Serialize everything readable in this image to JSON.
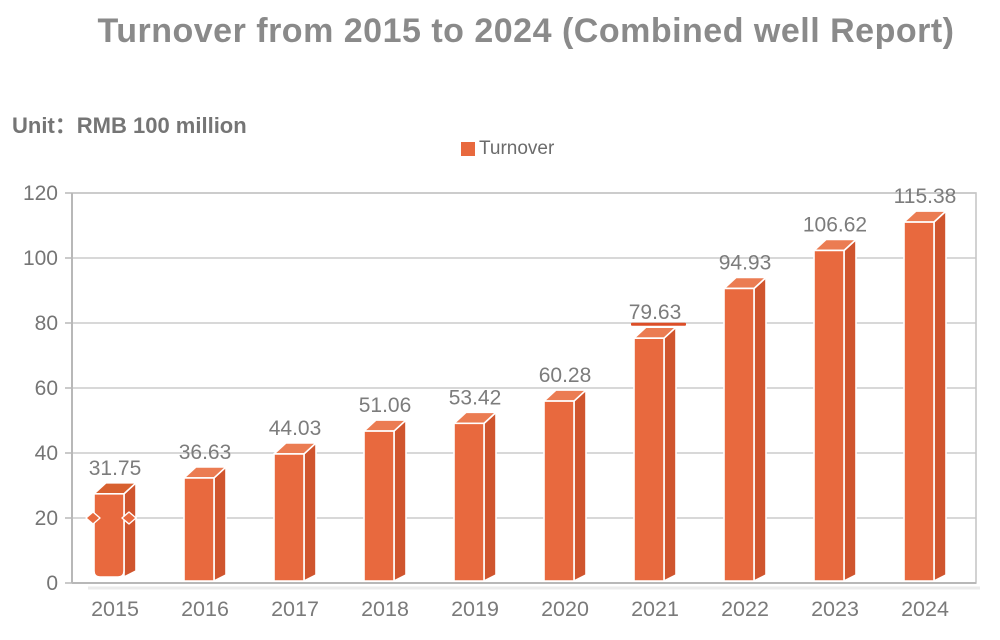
{
  "header": {
    "title": "Turnover from 2015 to 2024 (Combined well Report)",
    "unit_label": "Unit：RMB 100 million"
  },
  "legend": {
    "label": "Turnover",
    "swatch_color": "#e8693e"
  },
  "chart_data": {
    "type": "bar",
    "title": "Turnover from 2015 to 2024 (Combined well Report)",
    "unit": "RMB 100 million",
    "categories": [
      "2015",
      "2016",
      "2017",
      "2018",
      "2019",
      "2020",
      "2021",
      "2022",
      "2023",
      "2024"
    ],
    "series": [
      {
        "name": "Turnover",
        "values": [
          31.75,
          36.63,
          44.03,
          51.06,
          53.42,
          60.28,
          79.63,
          94.93,
          106.62,
          115.38
        ]
      }
    ],
    "value_labels": [
      "31.75",
      "36.63",
      "44.03",
      "51.06",
      "53.42",
      "60.28",
      "79.63",
      "94.93",
      "106.62",
      "115.38"
    ],
    "xlabel": "",
    "ylabel": "",
    "ylim": [
      0,
      120
    ],
    "ytick_step": 20,
    "ytick_labels": [
      "0",
      "20",
      "40",
      "60",
      "80",
      "100",
      "120"
    ],
    "grid": true,
    "legend_position": "top-center",
    "annotations": [
      {
        "type": "value-line",
        "category": "2021",
        "value": 79.63
      },
      {
        "type": "ribbon-pinch",
        "category": "2015",
        "at_value": 20
      }
    ]
  },
  "colors": {
    "bar_front": "#e8693e",
    "bar_top": "#eb7c52",
    "bar_top_2015": "#d8602f",
    "bar_side": "#d0552e",
    "bar_stroke": "#ffffff",
    "marker_line": "#dc4e28",
    "grid_line": "#cbcbcb",
    "plot_border": "#c6c6c6",
    "axis_line": "#b8b8b8",
    "axis_shadow": "#ebebeb",
    "title_text": "#8a8a8a",
    "unit_text": "#757575",
    "legend_text": "#6b6b6b",
    "value_text": "#7c7c7c",
    "tick_text": "#757575",
    "category_text": "#7a7a7a"
  }
}
